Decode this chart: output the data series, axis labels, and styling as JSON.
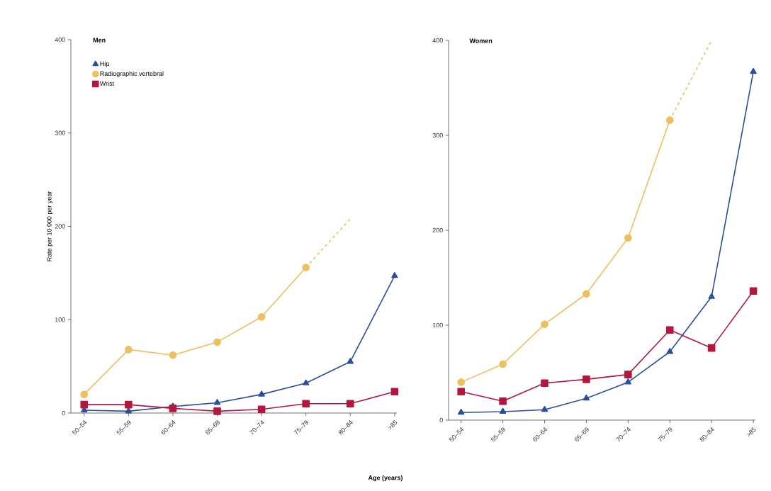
{
  "chart_data": [
    {
      "type": "line",
      "title": "Men",
      "ylabel": "Rate per 10 000 per year",
      "xlabel": "Age (years)",
      "categories": [
        "50–54",
        "55–59",
        "60–64",
        "65–69",
        "70–74",
        "75–79",
        "80–84",
        ">85"
      ],
      "series": [
        {
          "name": "Hip",
          "color": "#2a4f9c",
          "marker": "triangle",
          "values": [
            3,
            2,
            7,
            11,
            20,
            32,
            55,
            147
          ]
        },
        {
          "name": "Radiographic vertebral",
          "color": "#eebf5f",
          "marker": "circle",
          "values": [
            20,
            68,
            62,
            76,
            103,
            156,
            null,
            null
          ]
        },
        {
          "name": "Wrist",
          "color": "#b5163f",
          "marker": "square",
          "values": [
            9,
            9,
            5,
            2,
            4,
            10,
            10,
            23
          ]
        },
        {
          "color": "#eebf5f",
          "line_style": "dashed",
          "values": [
            null,
            null,
            null,
            null,
            null,
            156,
            208,
            null
          ]
        }
      ],
      "ylim": [
        0,
        400
      ],
      "yticks": [
        0,
        100,
        200,
        300,
        400
      ],
      "legend": "top left"
    },
    {
      "type": "line",
      "title": "Women",
      "categories": [
        "50–54",
        "55–59",
        "60–64",
        "65–69",
        "70–74",
        "75–79",
        "80–84",
        ">85"
      ],
      "series": [
        {
          "color": "#2a4f9c",
          "marker": "triangle",
          "values": [
            8,
            9,
            11,
            23,
            40,
            72,
            130,
            367
          ]
        },
        {
          "color": "#eebf5f",
          "marker": "circle",
          "values": [
            40,
            59,
            101,
            133,
            192,
            316,
            null,
            null
          ]
        },
        {
          "color": "#b5163f",
          "marker": "square",
          "values": [
            30,
            20,
            39,
            43,
            48,
            95,
            76,
            136
          ]
        },
        {
          "color": "#eebf5f",
          "line_style": "dashed",
          "values": [
            null,
            null,
            null,
            null,
            null,
            316,
            400,
            null
          ]
        }
      ],
      "ylim": [
        0,
        400
      ],
      "yticks": [
        0,
        100,
        200,
        300,
        400
      ]
    }
  ]
}
